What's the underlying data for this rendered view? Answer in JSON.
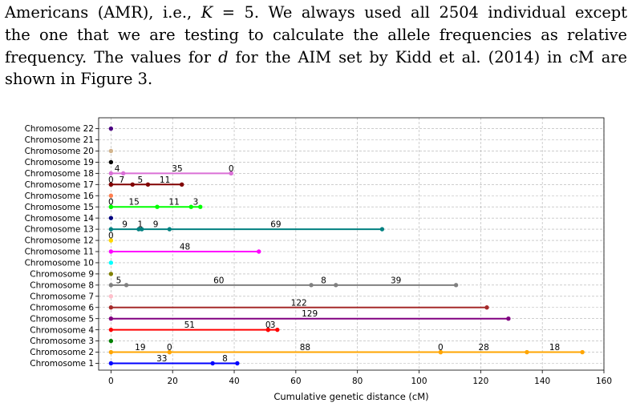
{
  "paragraph": {
    "line1_a": "Americans (AMR), i.e., ",
    "line1_k": "K",
    "line1_b": " = 5.  We always used all 2504 individual except",
    "line2": "the one that we are testing to calculate the allele frequencies as relative",
    "line3_a": "frequency.  The values for ",
    "line3_d": "d",
    "line3_b": " for the AIM set by Kidd et al. (2014) in cM are",
    "line4": "shown in Figure 3."
  },
  "chart_data": {
    "type": "scatter",
    "xlabel": "Cumulative genetic distance (cM)",
    "ylabel": "",
    "xlim": [
      -4,
      160
    ],
    "xticks": [
      0,
      20,
      40,
      60,
      80,
      100,
      120,
      140,
      160
    ],
    "grid": true,
    "categories": [
      "Chromosome 1",
      "Chromosome 2",
      "Chromosome 3",
      "Chromosome 4",
      "Chromosome 5",
      "Chromosome 6",
      "Chromosome 7",
      "Chromosome 8",
      "Chromosome 9",
      "Chromosome 10",
      "Chromosome 11",
      "Chromosome 12",
      "Chromosome 13",
      "Chromosome 14",
      "Chromosome 15",
      "Chromosome 16",
      "Chromosome 17",
      "Chromosome 18",
      "Chromosome 19",
      "Chromosome 20",
      "Chromosome 21",
      "Chromosome 22"
    ],
    "series": [
      {
        "category": "Chromosome 1",
        "color": "#0000ff",
        "x": [
          0,
          33,
          41
        ],
        "labels": [
          "33",
          "8"
        ]
      },
      {
        "category": "Chromosome 2",
        "color": "#ffa500",
        "x": [
          0,
          19,
          19,
          107,
          107,
          135,
          153
        ],
        "labels": [
          "19",
          "0",
          "88",
          "0",
          "28",
          "18"
        ]
      },
      {
        "category": "Chromosome 3",
        "color": "#008000",
        "x": [
          0
        ],
        "labels": []
      },
      {
        "category": "Chromosome 4",
        "color": "#ff0000",
        "x": [
          0,
          51,
          51,
          54
        ],
        "labels": [
          "51",
          "0",
          "3"
        ]
      },
      {
        "category": "Chromosome 5",
        "color": "#800080",
        "x": [
          0,
          129
        ],
        "labels": [
          "129"
        ]
      },
      {
        "category": "Chromosome 6",
        "color": "#a52a2a",
        "x": [
          0,
          122
        ],
        "labels": [
          "122"
        ]
      },
      {
        "category": "Chromosome 7",
        "color": "#ffc0cb",
        "x": [
          0
        ],
        "labels": []
      },
      {
        "category": "Chromosome 8",
        "color": "#808080",
        "x": [
          0,
          5,
          65,
          73,
          112
        ],
        "labels": [
          "5",
          "60",
          "8",
          "39"
        ]
      },
      {
        "category": "Chromosome 9",
        "color": "#808000",
        "x": [
          0
        ],
        "labels": []
      },
      {
        "category": "Chromosome 10",
        "color": "#00ffff",
        "x": [
          0
        ],
        "labels": []
      },
      {
        "category": "Chromosome 11",
        "color": "#ff00ff",
        "x": [
          0,
          48
        ],
        "labels": [
          "48"
        ]
      },
      {
        "category": "Chromosome 12",
        "color": "#ffd700",
        "x": [
          0,
          0
        ],
        "labels": [
          "0"
        ]
      },
      {
        "category": "Chromosome 13",
        "color": "#008080",
        "x": [
          0,
          9,
          10,
          19,
          88
        ],
        "labels": [
          "9",
          "1",
          "9",
          "69"
        ]
      },
      {
        "category": "Chromosome 14",
        "color": "#000080",
        "x": [
          0
        ],
        "labels": []
      },
      {
        "category": "Chromosome 15",
        "color": "#00ff00",
        "x": [
          0,
          0,
          15,
          26,
          29
        ],
        "labels": [
          "0",
          "15",
          "11",
          "3"
        ]
      },
      {
        "category": "Chromosome 16",
        "color": "#ff7f50",
        "x": [
          0
        ],
        "labels": []
      },
      {
        "category": "Chromosome 17",
        "color": "#800000",
        "x": [
          0,
          0,
          7,
          12,
          23
        ],
        "labels": [
          "0",
          "7",
          "5",
          "11"
        ]
      },
      {
        "category": "Chromosome 18",
        "color": "#da70d6",
        "x": [
          0,
          4,
          39,
          39
        ],
        "labels": [
          "4",
          "35",
          "0"
        ]
      },
      {
        "category": "Chromosome 19",
        "color": "#000000",
        "x": [
          0
        ],
        "labels": []
      },
      {
        "category": "Chromosome 20",
        "color": "#d2b48c",
        "x": [
          0
        ],
        "labels": []
      },
      {
        "category": "Chromosome 21",
        "color": "#ffffff",
        "x": [],
        "labels": []
      },
      {
        "category": "Chromosome 22",
        "color": "#4b0082",
        "x": [
          0
        ],
        "labels": []
      }
    ]
  }
}
